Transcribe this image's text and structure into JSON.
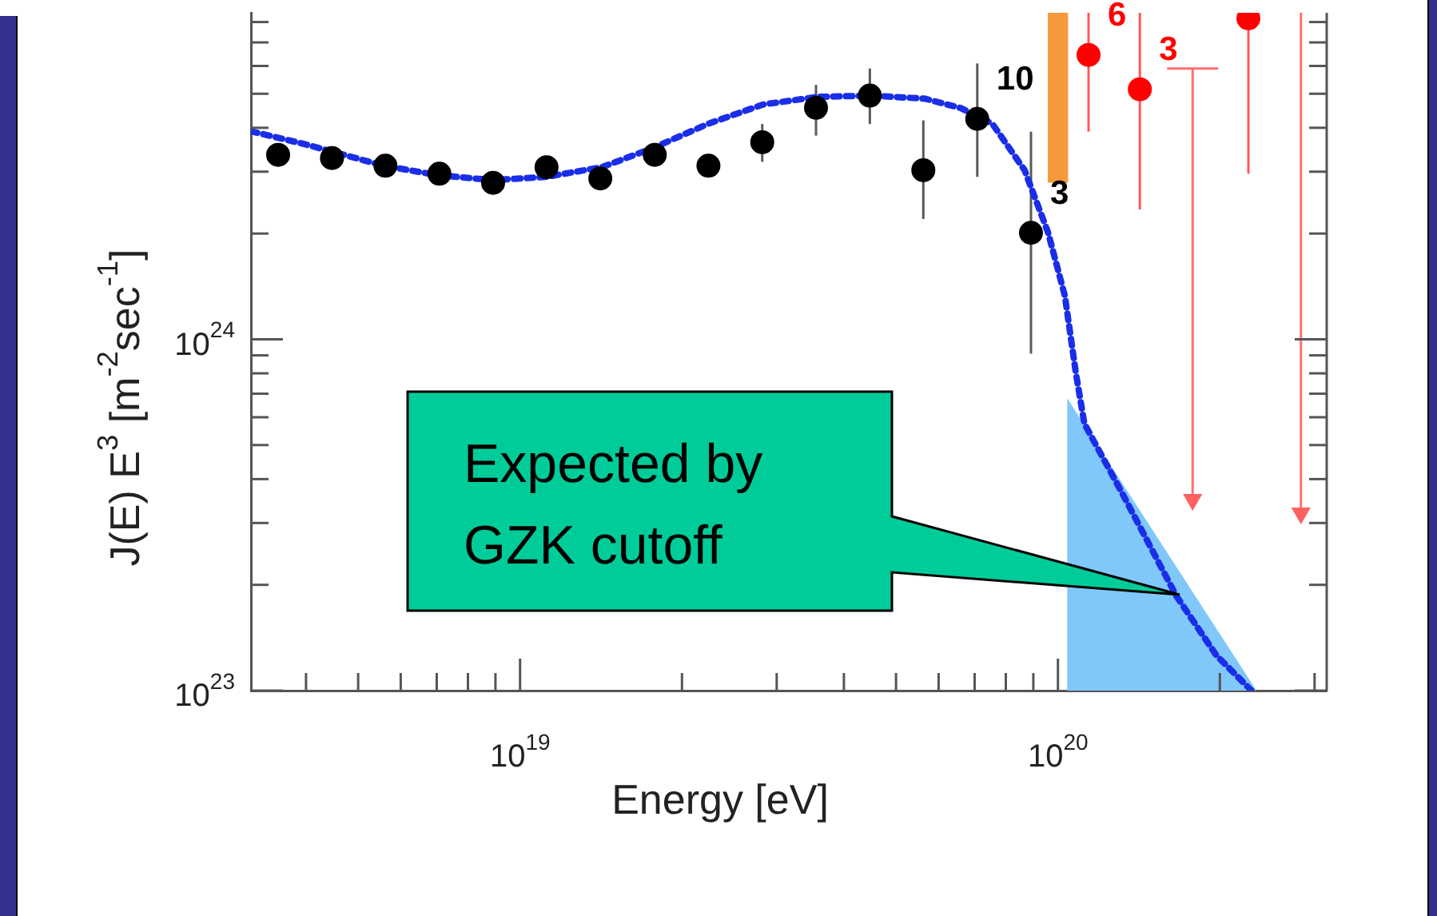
{
  "chart_data": {
    "type": "scatter",
    "xlabel": "Energy [eV]",
    "ylabel": "J(E) E$^{3}$ [m$^{-2}$sec$^{-1}$]",
    "log": "xy",
    "grid": false,
    "legend": false,
    "marker": "circle",
    "xlim": [
      3.16e+18,
      3.16e+20
    ],
    "ylim": [
      1e+23,
      8.5e+24
    ],
    "xticks": [
      {
        "value": 4e+18,
        "label": null
      },
      {
        "value": 5e+18,
        "label": null
      },
      {
        "value": 6e+18,
        "label": null
      },
      {
        "value": 7e+18,
        "label": null
      },
      {
        "value": 8e+18,
        "label": null
      },
      {
        "value": 9e+18,
        "label": null
      },
      {
        "value": 1e+19,
        "label": "10$^{19}$"
      },
      {
        "value": 2e+19,
        "label": null
      },
      {
        "value": 3e+19,
        "label": null
      },
      {
        "value": 4e+19,
        "label": null
      },
      {
        "value": 5e+19,
        "label": null
      },
      {
        "value": 6e+19,
        "label": null
      },
      {
        "value": 7e+19,
        "label": null
      },
      {
        "value": 8e+19,
        "label": null
      },
      {
        "value": 9e+19,
        "label": null
      },
      {
        "value": 1e+20,
        "label": "10$^{20}$"
      },
      {
        "value": 2e+20,
        "label": null
      },
      {
        "value": 3e+20,
        "label": null
      }
    ],
    "yticks": [
      {
        "value": 1e+23,
        "label": "10$^{23}$"
      },
      {
        "value": 2e+23,
        "label": null
      },
      {
        "value": 3e+23,
        "label": null
      },
      {
        "value": 4e+23,
        "label": null
      },
      {
        "value": 5e+23,
        "label": null
      },
      {
        "value": 6e+23,
        "label": null
      },
      {
        "value": 7e+23,
        "label": null
      },
      {
        "value": 8e+23,
        "label": null
      },
      {
        "value": 9e+23,
        "label": null
      },
      {
        "value": 1e+24,
        "label": "10$^{24}$"
      },
      {
        "value": 2e+24,
        "label": null
      },
      {
        "value": 3e+24,
        "label": null
      },
      {
        "value": 4e+24,
        "label": null
      },
      {
        "value": 5e+24,
        "label": null
      },
      {
        "value": 6e+24,
        "label": null
      },
      {
        "value": 7e+24,
        "label": null
      },
      {
        "value": 8e+24,
        "label": null
      }
    ],
    "series": [
      {
        "type": "area",
        "color": "#80c8fa",
        "marker": "none",
        "x": [
          1.04e+20,
          2.34e+20
        ],
        "values": [
          6.8e+23,
          1e+23
        ]
      },
      {
        "type": "bar",
        "color": "#f59a3c",
        "x": [
          1e+20
        ],
        "base": [
          2.8e+24
        ],
        "values": [
          5.7e+24
        ]
      },
      {
        "type": "line",
        "color": "#1a2ee8",
        "marker": "none",
        "line_style": "dotted",
        "x": [
          3.16e+18,
          3.96e+18,
          5.58e+18,
          7.05e+18,
          8.89e+18,
          1.12e+19,
          1.42e+19,
          1.78e+19,
          2.24e+19,
          2.83e+19,
          3.58e+19,
          4.52e+19,
          5.66e+19,
          6.58e+19,
          7.55e+19,
          8.67e+19,
          9.59e+19,
          1.03e+20,
          1.08e+20,
          1.12e+20,
          1.31e+20,
          1.66e+20,
          1.97e+20,
          2.29e+20
        ],
        "values": [
          3.91e+24,
          3.6e+24,
          3.12e+24,
          2.93e+24,
          2.84e+24,
          2.9e+24,
          3.09e+24,
          3.52e+24,
          4.11e+24,
          4.66e+24,
          4.9e+24,
          4.94e+24,
          4.84e+24,
          4.56e+24,
          4.11e+24,
          3.03e+24,
          2.01e+24,
          1.33e+24,
          8e+23,
          5.75e+23,
          3.7e+23,
          1.86e+23,
          1.26e+23,
          1e+23
        ]
      },
      {
        "color": "#000000",
        "x": [
          3.55e+18,
          4.47e+18,
          5.62e+18,
          7.08e+18,
          8.91e+18,
          1.12e+19,
          1.41e+19,
          1.78e+19,
          2.24e+19,
          2.82e+19,
          3.55e+19,
          4.47e+19,
          5.62e+19,
          7.08e+19,
          8.91e+19
        ],
        "values": [
          3.35e+24,
          3.28e+24,
          3.12e+24,
          2.96e+24,
          2.79e+24,
          3.09e+24,
          2.87e+24,
          3.35e+24,
          3.12e+24,
          3.64e+24,
          4.56e+24,
          4.94e+24,
          3.03e+24,
          4.24e+24,
          2.01e+24
        ],
        "errors": [
          null,
          null,
          null,
          null,
          null,
          null,
          null,
          null,
          null,
          [
            3.2e+24,
            4.1e+24
          ],
          [
            3.8e+24,
            5.3e+24
          ],
          [
            4.1e+24,
            5.9e+24
          ],
          [
            2.2e+24,
            4.2e+24
          ],
          [
            2.9e+24,
            6.1e+24
          ],
          [
            9.1e+23,
            3.9e+24
          ]
        ]
      },
      {
        "color": "#ff0000",
        "x": [
          1.14e+20,
          1.42e+20,
          2.26e+20
        ],
        "values": [
          6.45e+24,
          5.15e+24,
          8.2e+24
        ],
        "errors": [
          [
            3.9e+24,
            8.5e+24
          ],
          [
            2.34e+24,
            8.5e+24
          ],
          [
            2.96e+24,
            8.5e+24
          ]
        ]
      },
      {
        "color": "#ff6060",
        "marker": "triangle",
        "x": [
          1.78e+20,
          2.83e+20
        ],
        "values": [
          3.5e+23,
          3.2e+23
        ],
        "errors": [
          [
            3.5e+23,
            5.9e+24
          ],
          [
            3.2e+23,
            8.5e+24
          ]
        ]
      }
    ],
    "annotations": [
      {
        "text": "10",
        "x": 7.08e+19,
        "y": 4.24e+24
      },
      {
        "text": "3",
        "x": 8.91e+19,
        "y": 2.01e+24
      },
      {
        "text": "6",
        "x": 1.14e+20,
        "y": 6.45e+24
      },
      {
        "text": "3",
        "x": 1.42e+20,
        "y": 5.15e+24
      },
      "Expected by GZK cutoff"
    ]
  }
}
